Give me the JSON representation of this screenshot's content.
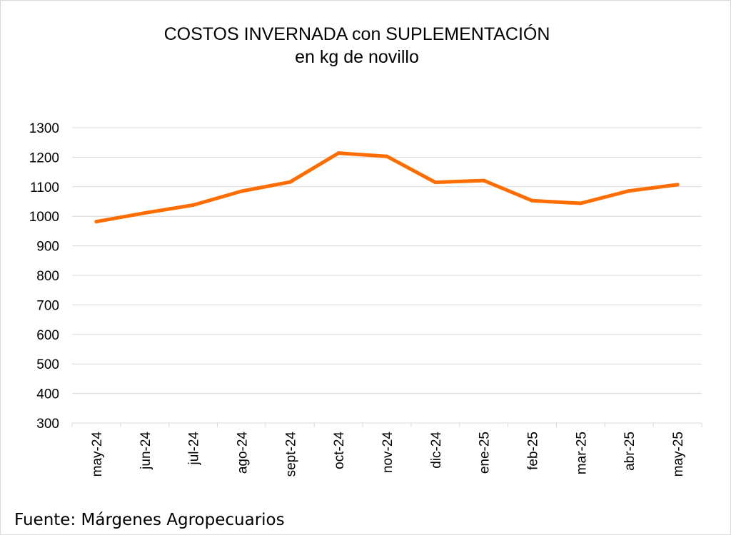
{
  "chart_data": {
    "type": "line",
    "title": "COSTOS INVERNADA con SUPLEMENTACIÓN",
    "subtitle": "en kg de novillo",
    "xlabel": "",
    "ylabel": "",
    "categories": [
      "may-24",
      "jun-24",
      "jul-24",
      "ago-24",
      "sept-24",
      "oct-24",
      "nov-24",
      "dic-24",
      "ene-25",
      "feb-25",
      "mar-25",
      "abr-25",
      "may-25"
    ],
    "series": [
      {
        "values": [
          982,
          1011,
          1038,
          1085,
          1116,
          1214,
          1203,
          1115,
          1121,
          1053,
          1044,
          1086,
          1107
        ],
        "color": "#FF6D00"
      }
    ],
    "ylim": [
      300,
      1300
    ],
    "yticks": [
      300,
      400,
      500,
      600,
      700,
      800,
      900,
      1000,
      1100,
      1200,
      1300
    ],
    "grid": true,
    "legend": "none"
  },
  "source_text": "Fuente: Márgenes Agropecuarios"
}
